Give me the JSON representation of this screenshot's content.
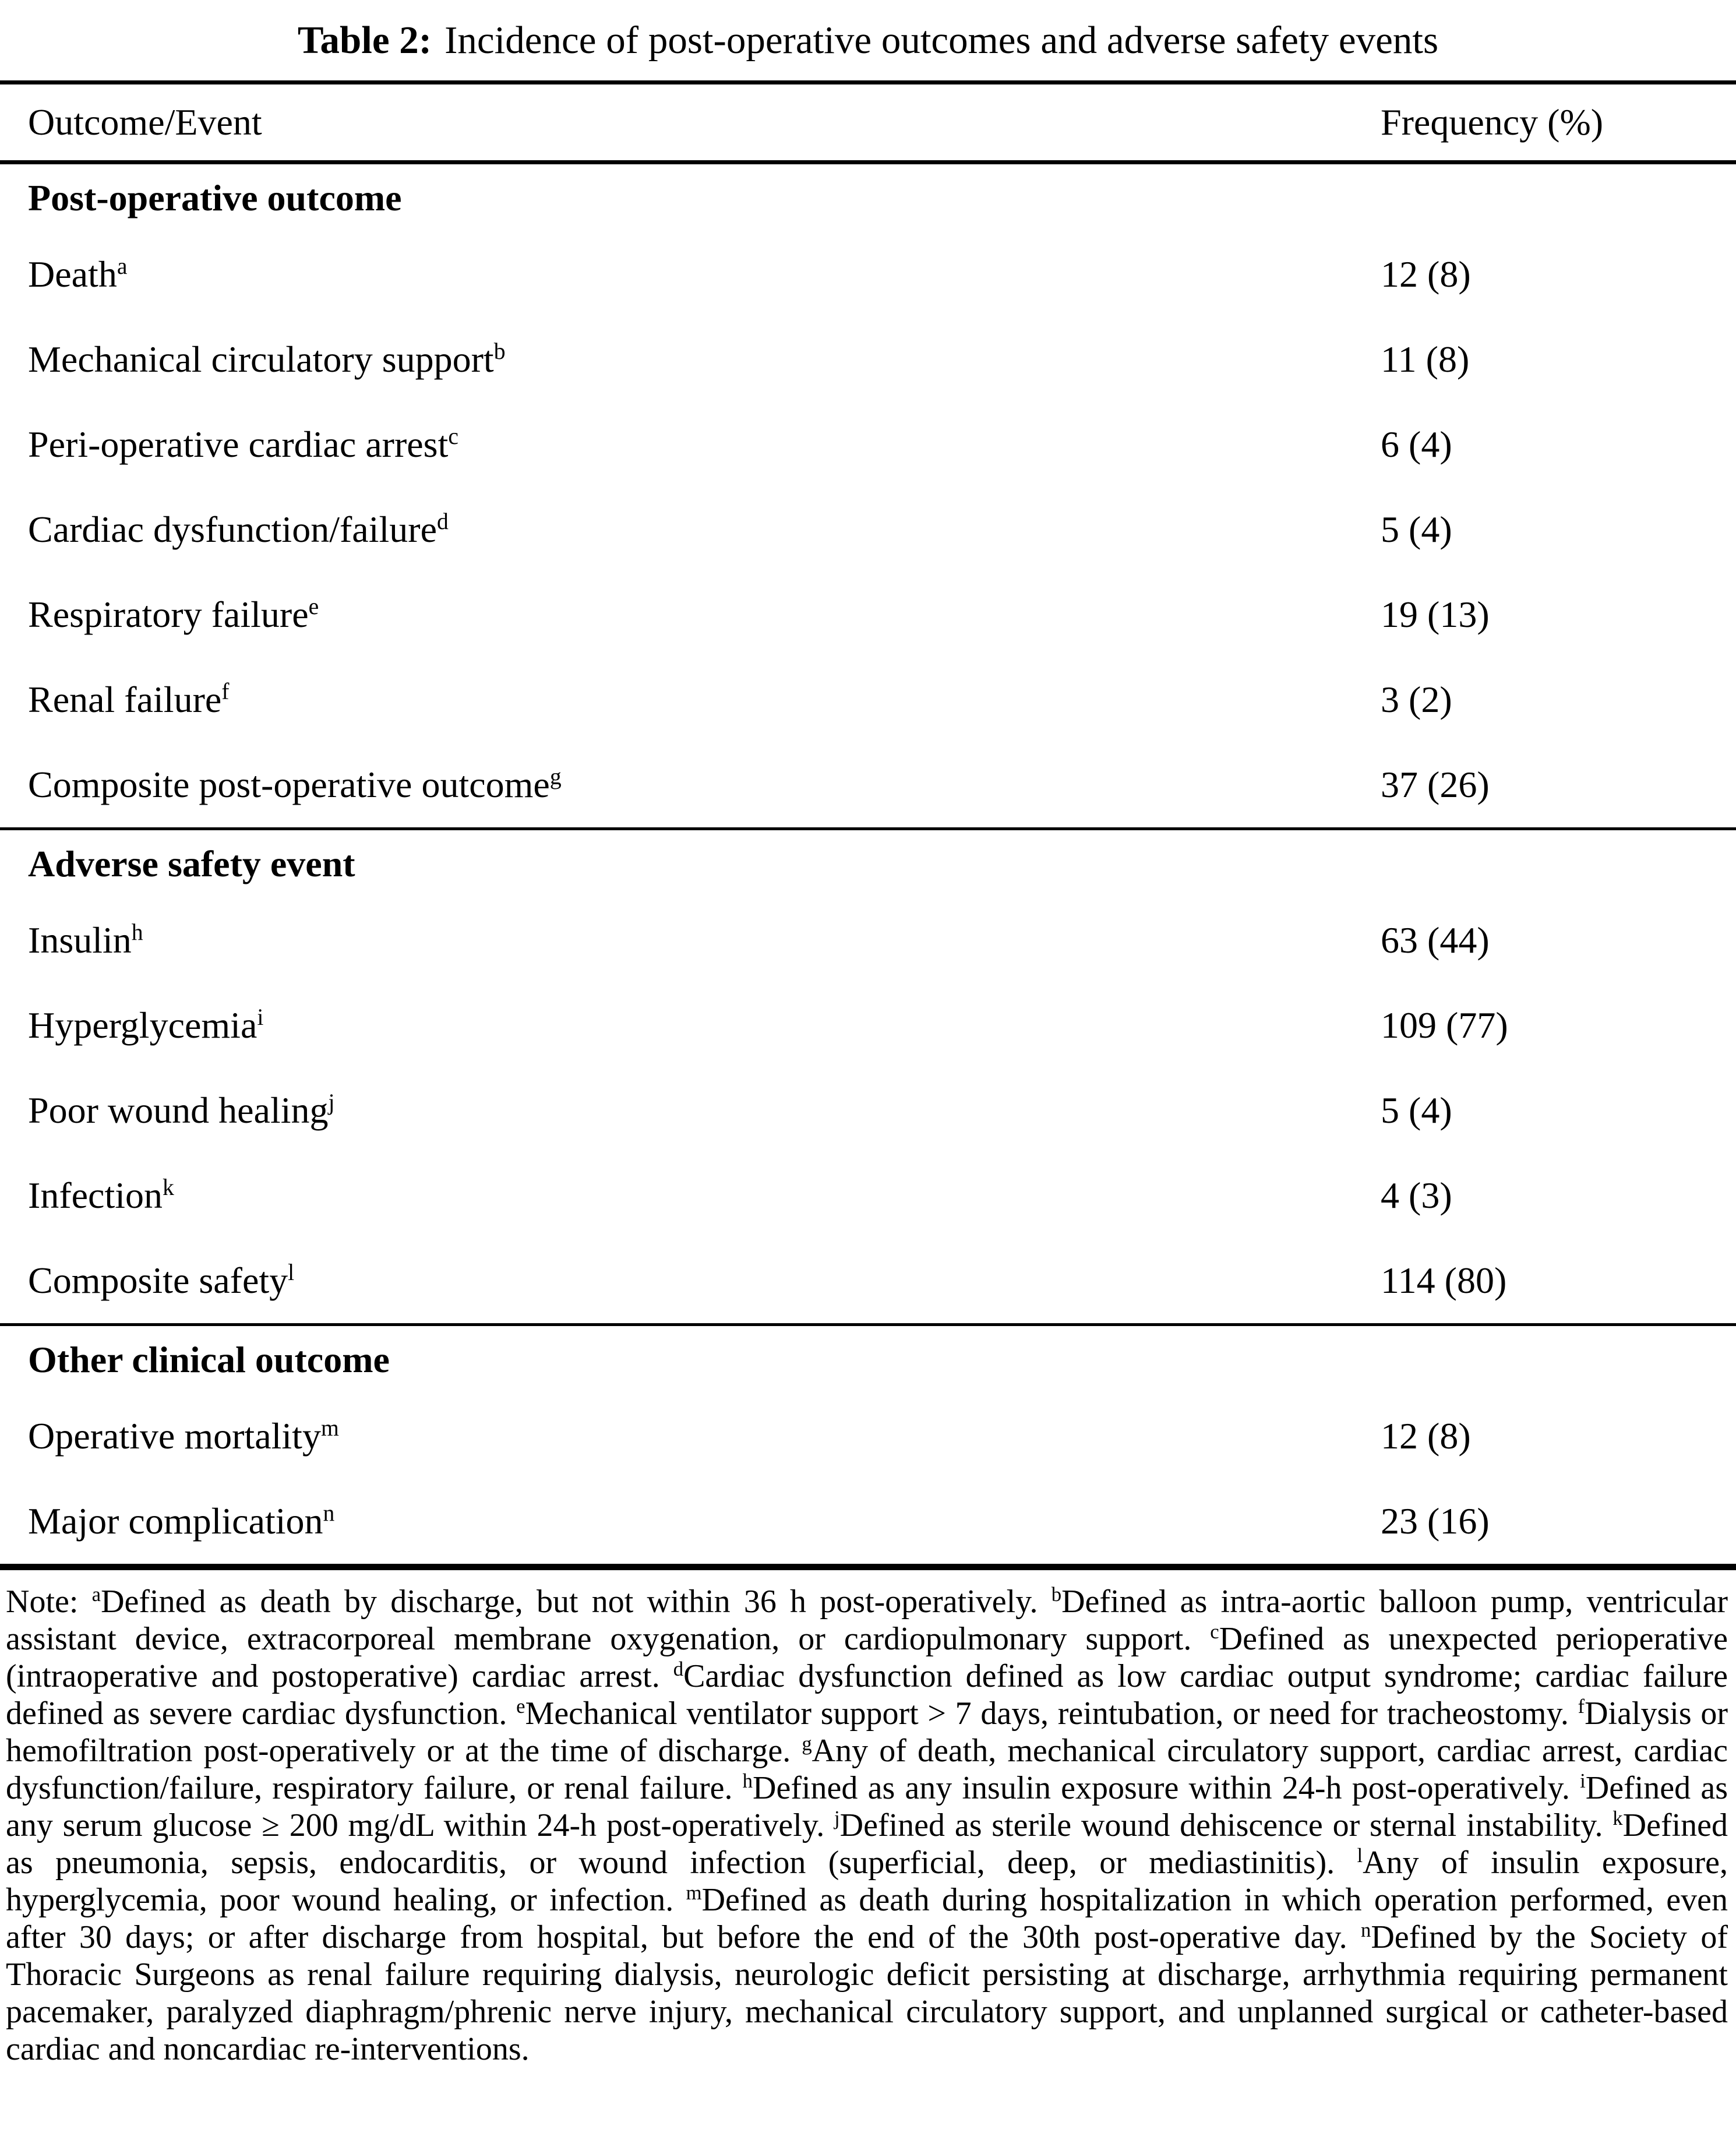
{
  "document": {
    "title": {
      "label": "Table 2:",
      "text": "Incidence of post-operative outcomes and adverse safety events"
    }
  },
  "table": {
    "columns": {
      "outcome": "Outcome/Event",
      "frequency": "Frequency (%)"
    },
    "sections": [
      {
        "header": "Post-operative outcome",
        "rows": [
          {
            "label": "Death",
            "sup": "a",
            "value": "12 (8)"
          },
          {
            "label": "Mechanical circulatory support",
            "sup": "b",
            "value": "11 (8)"
          },
          {
            "label": "Peri-operative cardiac arrest",
            "sup": "c",
            "value": "6 (4)"
          },
          {
            "label": "Cardiac dysfunction/failure",
            "sup": "d",
            "value": "5 (4)"
          },
          {
            "label": "Respiratory failure",
            "sup": "e",
            "value": "19 (13)"
          },
          {
            "label": "Renal failure",
            "sup": "f",
            "value": "3 (2)"
          },
          {
            "label": "Composite post-operative outcome",
            "sup": "g",
            "value": "37 (26)"
          }
        ]
      },
      {
        "header": "Adverse safety event",
        "rows": [
          {
            "label": "Insulin",
            "sup": "h",
            "value": "63 (44)"
          },
          {
            "label": "Hyperglycemia",
            "sup": "i",
            "value": "109 (77)"
          },
          {
            "label": "Poor wound healing",
            "sup": "j",
            "value": "5 (4)"
          },
          {
            "label": "Infection",
            "sup": "k",
            "value": "4 (3)"
          },
          {
            "label": "Composite safety",
            "sup": "l",
            "value": "114 (80)"
          }
        ]
      },
      {
        "header": "Other clinical outcome",
        "rows": [
          {
            "label": "Operative mortality",
            "sup": "m",
            "value": "12 (8)"
          },
          {
            "label": "Major complication",
            "sup": "n",
            "value": "23 (16)"
          }
        ]
      }
    ]
  },
  "note": {
    "prefix": "Note: ",
    "segments": [
      {
        "sup": "a",
        "text": "Defined as death by discharge, but not within 36 h post-operatively. "
      },
      {
        "sup": "b",
        "text": "Defined as intra-aortic balloon pump, ventricular assistant device, extracorporeal membrane oxygenation, or cardiopulmonary support. "
      },
      {
        "sup": "c",
        "text": "Defined as unexpected perioperative (intraoperative and postoperative) cardiac arrest. "
      },
      {
        "sup": "d",
        "text": "Cardiac dysfunction defined as low cardiac output syndrome; cardiac failure defined as severe cardiac dysfunction. "
      },
      {
        "sup": "e",
        "text": "Mechanical ventilator support > 7 days, reintubation, or need for tracheostomy. "
      },
      {
        "sup": "f",
        "text": "Dialysis or hemofiltration post-operatively or at the time of discharge. "
      },
      {
        "sup": "g",
        "text": "Any of death, mechanical circulatory support, cardiac arrest, cardiac dysfunction/failure, respiratory failure, or renal failure. "
      },
      {
        "sup": "h",
        "text": "Defined as any insulin exposure within 24-h post-operatively. "
      },
      {
        "sup": "i",
        "text": "Defined as any serum glucose ≥ 200 mg/dL within 24-h post-operatively. "
      },
      {
        "sup": "j",
        "text": "Defined as sterile wound dehiscence or sternal instability. "
      },
      {
        "sup": "k",
        "text": "Defined as pneumonia, sepsis, endocarditis, or wound infection (superficial, deep, or mediastinitis). "
      },
      {
        "sup": "l",
        "text": "Any of insulin exposure, hyperglycemia, poor wound healing, or infection. "
      },
      {
        "sup": "m",
        "text": "Defined as death during hospitalization in which operation performed, even after 30 days; or after discharge from hospital, but before the end of the 30th post-operative day. "
      },
      {
        "sup": "n",
        "text": "Defined by the Society of Thoracic Surgeons as renal failure requiring dialysis, neurologic deficit persisting at discharge, arrhythmia requiring permanent pacemaker, paralyzed diaphragm/phrenic nerve injury, mechanical circulatory support, and unplanned surgical or catheter-based cardiac and noncardiac re-interventions."
      }
    ]
  }
}
